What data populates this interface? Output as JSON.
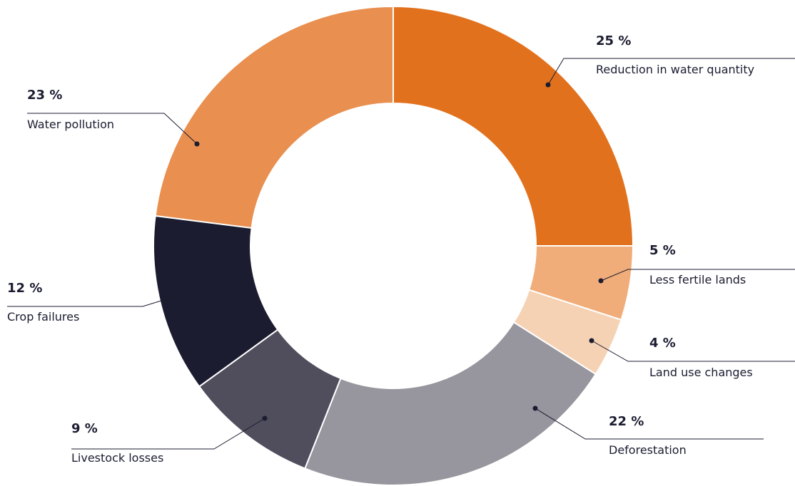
{
  "chart_data": {
    "type": "donut",
    "categories": [
      "Reduction in water quantity",
      "Less fertile lands",
      "Land use changes",
      "Deforestation",
      "Livestock losses",
      "Crop failures",
      "Water pollution"
    ],
    "values": [
      25,
      5,
      4,
      22,
      9,
      12,
      23
    ],
    "value_labels": [
      "25 %",
      "5 %",
      "4 %",
      "22 %",
      "9 %",
      "12 %",
      "23 %"
    ],
    "colors": [
      "#e2711d",
      "#f0ad7a",
      "#f6d2b4",
      "#97959d",
      "#504e5c",
      "#1b1c30",
      "#e98f4f"
    ]
  }
}
